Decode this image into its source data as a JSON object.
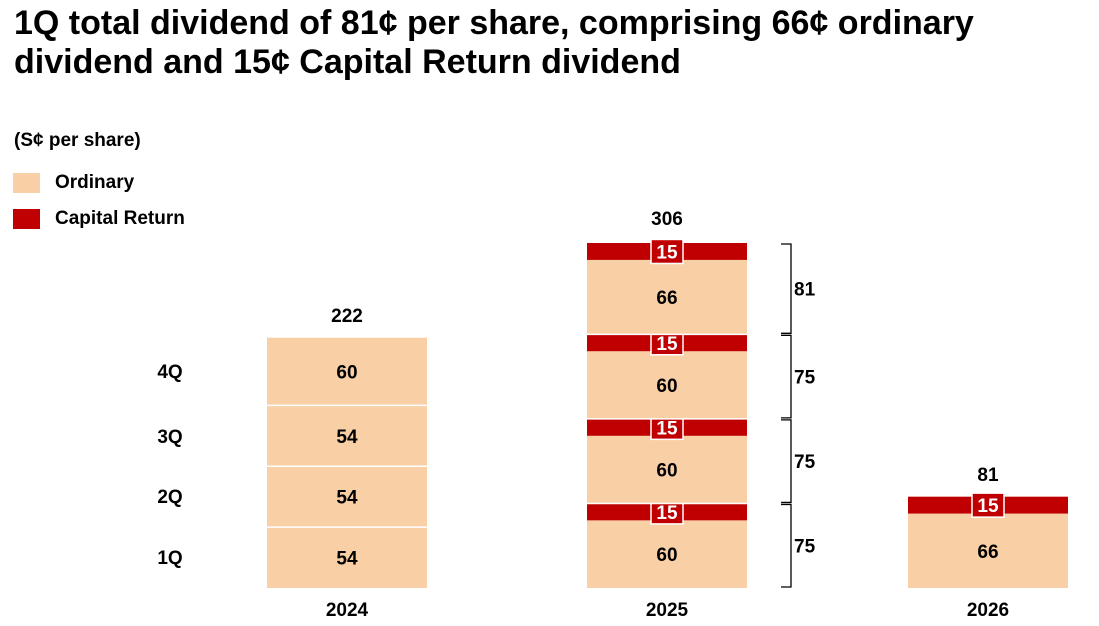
{
  "chart_data": {
    "type": "bar",
    "title": "1Q total dividend of 81¢ per share, comprising 66¢ ordinary dividend and 15¢ Capital Return dividend",
    "unit_label": "(S¢ per share)",
    "legend": [
      {
        "name": "Ordinary",
        "color": "#f9cfa6"
      },
      {
        "name": "Capital Return",
        "color": "#c00000"
      }
    ],
    "categories": [
      "2024",
      "2025",
      "2026"
    ],
    "quarter_labels": [
      "1Q",
      "2Q",
      "3Q",
      "4Q"
    ],
    "ylim": [
      0,
      306
    ],
    "stacks": [
      {
        "year": "2024",
        "total": "222",
        "segments": [
          {
            "quarter": "1Q",
            "series": "Ordinary",
            "value": 54
          },
          {
            "quarter": "2Q",
            "series": "Ordinary",
            "value": 54
          },
          {
            "quarter": "3Q",
            "series": "Ordinary",
            "value": 54
          },
          {
            "quarter": "4Q",
            "series": "Ordinary",
            "value": 60
          }
        ],
        "brackets": []
      },
      {
        "year": "2025",
        "total": "306",
        "segments": [
          {
            "quarter": "1Q",
            "series": "Ordinary",
            "value": 60
          },
          {
            "quarter": "1Q",
            "series": "Capital Return",
            "value": 15
          },
          {
            "quarter": "2Q",
            "series": "Ordinary",
            "value": 60
          },
          {
            "quarter": "2Q",
            "series": "Capital Return",
            "value": 15
          },
          {
            "quarter": "3Q",
            "series": "Ordinary",
            "value": 60
          },
          {
            "quarter": "3Q",
            "series": "Capital Return",
            "value": 15
          },
          {
            "quarter": "4Q",
            "series": "Ordinary",
            "value": 66
          },
          {
            "quarter": "4Q",
            "series": "Capital Return",
            "value": 15
          }
        ],
        "brackets": [
          {
            "quarter": "1Q",
            "total": 75
          },
          {
            "quarter": "2Q",
            "total": 75
          },
          {
            "quarter": "3Q",
            "total": 75
          },
          {
            "quarter": "4Q",
            "total": 81
          }
        ]
      },
      {
        "year": "2026",
        "total": "81",
        "segments": [
          {
            "quarter": "1Q",
            "series": "Ordinary",
            "value": 66
          },
          {
            "quarter": "1Q",
            "series": "Capital Return",
            "value": 15
          }
        ],
        "brackets": []
      }
    ]
  }
}
